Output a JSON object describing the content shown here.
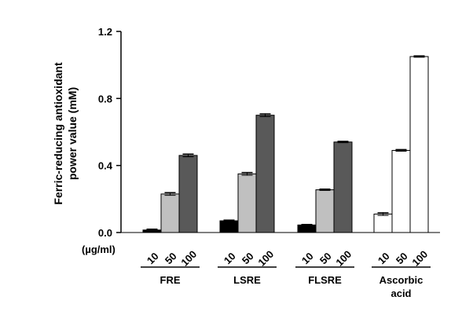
{
  "chart_data": {
    "type": "bar",
    "ylabel_line1": "Ferric-reducing antioxidant",
    "ylabel_line2": "power value (mM)",
    "ylim": [
      0,
      1.2
    ],
    "yticks": [
      "0.0",
      "0.4",
      "0.8",
      "1.2"
    ],
    "ytick_values": [
      0,
      0.4,
      0.8,
      1.2
    ],
    "unit_label": "(µg/ml)",
    "groups": [
      {
        "name": "FRE",
        "concentrations": [
          "10",
          "50",
          "100"
        ],
        "values": [
          0.015,
          0.23,
          0.46
        ],
        "errors": [
          0.005,
          0.008,
          0.008
        ],
        "colors": [
          "#000000",
          "#c0c0c0",
          "#595959"
        ]
      },
      {
        "name": "LSRE",
        "concentrations": [
          "10",
          "50",
          "100"
        ],
        "values": [
          0.07,
          0.35,
          0.7
        ],
        "errors": [
          0.004,
          0.008,
          0.008
        ],
        "colors": [
          "#000000",
          "#c0c0c0",
          "#595959"
        ]
      },
      {
        "name": "FLSRE",
        "concentrations": [
          "10",
          "50",
          "100"
        ],
        "values": [
          0.045,
          0.255,
          0.54
        ],
        "errors": [
          0.003,
          0.004,
          0.004
        ],
        "colors": [
          "#000000",
          "#c0c0c0",
          "#595959"
        ]
      },
      {
        "name_line1": "Ascorbic",
        "name_line2": "acid",
        "concentrations": [
          "10",
          "50",
          "100"
        ],
        "values": [
          0.11,
          0.49,
          1.05
        ],
        "errors": [
          0.008,
          0.005,
          0.004
        ],
        "colors": [
          "#ffffff",
          "#ffffff",
          "#ffffff"
        ]
      }
    ],
    "grid": false,
    "legend": "none"
  }
}
